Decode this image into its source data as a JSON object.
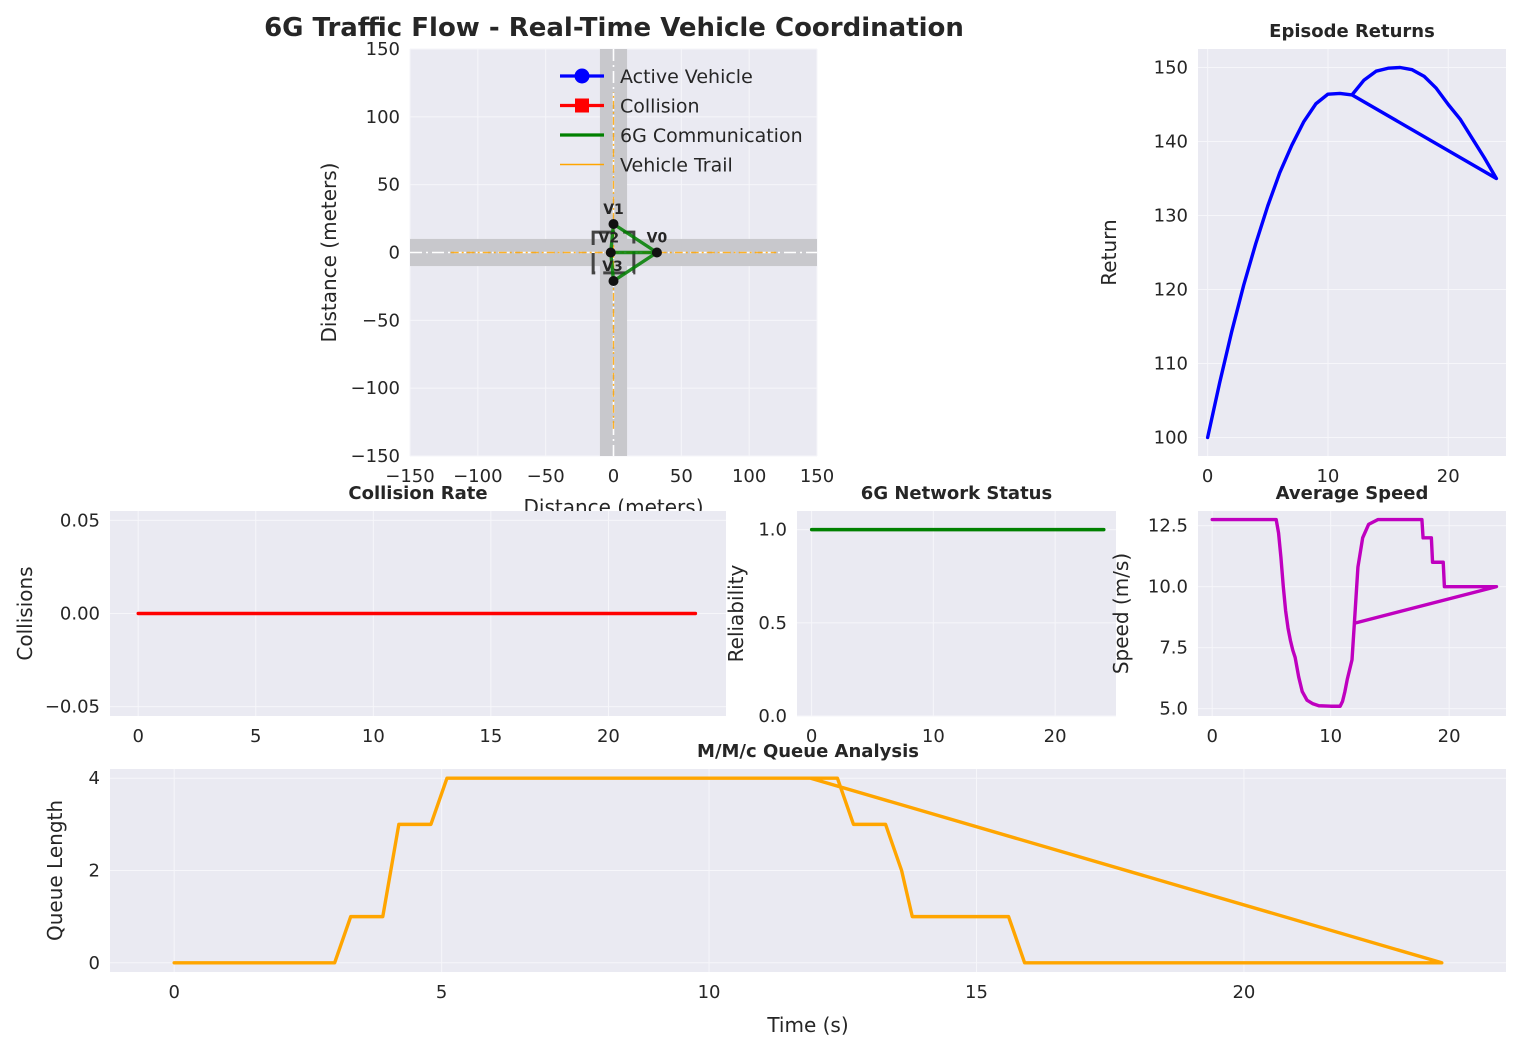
{
  "chart_data": [
    {
      "id": "traffic",
      "type": "scatter",
      "title": "6G Traffic Flow - Real-Time Vehicle Coordination",
      "xlabel": "Distance (meters)",
      "ylabel": "Distance (meters)",
      "xlim": [
        -150,
        150
      ],
      "ylim": [
        -150,
        150
      ],
      "xticks": [
        -150,
        -100,
        -50,
        0,
        50,
        100,
        150
      ],
      "yticks": [
        -150,
        -100,
        -50,
        0,
        50,
        100,
        150
      ],
      "grid": true,
      "legend": {
        "position": "top-right",
        "entries": [
          {
            "label": "Active Vehicle",
            "color": "#0000ff",
            "marker": "circle"
          },
          {
            "label": "Collision",
            "color": "#ff0000",
            "marker": "square"
          },
          {
            "label": "6G Communication",
            "color": "#008000",
            "marker": "line"
          },
          {
            "label": "Vehicle Trail",
            "color": "#ffa500",
            "marker": "thin-line"
          }
        ]
      },
      "vehicles": [
        {
          "label": "V0",
          "x": 32,
          "y": 0
        },
        {
          "label": "V1",
          "x": 0,
          "y": 21
        },
        {
          "label": "V2",
          "x": -2,
          "y": 0
        },
        {
          "label": "V3",
          "x": 0,
          "y": -21
        }
      ],
      "communication_links": [
        [
          0,
          1
        ],
        [
          1,
          2
        ],
        [
          2,
          3
        ],
        [
          3,
          0
        ],
        [
          0,
          2
        ]
      ],
      "trails": [
        {
          "x": [
            -120,
            120
          ],
          "y": [
            0,
            0
          ]
        },
        {
          "x": [
            0,
            0
          ],
          "y": [
            -130,
            118
          ]
        }
      ],
      "intersection_box": {
        "x": [
          -15,
          15
        ],
        "y": [
          -15,
          15
        ]
      },
      "roads": {
        "horizontal_halfwidth": 10,
        "vertical_halfwidth": 10
      }
    },
    {
      "id": "returns",
      "type": "line",
      "title": "Episode Returns",
      "ylabel": "Return",
      "xlim": [
        -0.8,
        24.8
      ],
      "ylim": [
        97.5,
        152.5
      ],
      "xticks": [
        0,
        10,
        20
      ],
      "yticks": [
        100,
        110,
        120,
        130,
        140,
        150
      ],
      "color": "#0000ff",
      "x": [
        0,
        1,
        2,
        3,
        4,
        5,
        6,
        7,
        8,
        9,
        10,
        11,
        12,
        13,
        14,
        15,
        16,
        17,
        18,
        19,
        20,
        21,
        22,
        23,
        24,
        12
      ],
      "y": [
        100,
        107.4,
        114.3,
        120.6,
        126.2,
        131.3,
        135.8,
        139.5,
        142.7,
        145.1,
        146.4,
        146.5,
        146.3,
        148.3,
        149.5,
        149.9,
        150,
        149.7,
        148.8,
        147.2,
        145,
        143,
        140.4,
        137.8,
        135,
        146.3
      ]
    },
    {
      "id": "collision",
      "type": "line",
      "title": "Collision Rate",
      "ylabel": "Collisions",
      "xlim": [
        -1.2,
        25
      ],
      "ylim": [
        -0.055,
        0.055
      ],
      "xticks": [
        0,
        5,
        10,
        15,
        20
      ],
      "yticks": [
        -0.05,
        0.0,
        0.05
      ],
      "ytick_labels": [
        "−0.05",
        "0.00",
        "0.05"
      ],
      "color": "#ff0000",
      "x": [
        0,
        23.7
      ],
      "y": [
        0,
        0
      ]
    },
    {
      "id": "network",
      "type": "line",
      "title": "6G Network Status",
      "ylabel": "Reliability",
      "xlim": [
        -1.2,
        25
      ],
      "ylim": [
        0,
        1.1
      ],
      "xticks": [
        0,
        10,
        20
      ],
      "yticks": [
        0.0,
        0.5,
        1.0
      ],
      "ytick_labels": [
        "0.0",
        "0.5",
        "1.0"
      ],
      "color": "#008000",
      "x": [
        0,
        24
      ],
      "y": [
        1,
        1
      ]
    },
    {
      "id": "speed",
      "type": "line",
      "title": "Average Speed",
      "ylabel": "Speed (m/s)",
      "xlim": [
        -1.2,
        24.8
      ],
      "ylim": [
        4.7,
        13.1
      ],
      "xticks": [
        0,
        10,
        20
      ],
      "yticks": [
        5.0,
        7.5,
        10.0,
        12.5
      ],
      "ytick_labels": [
        "5.0",
        "7.5",
        "10.0",
        "12.5"
      ],
      "color": "#bf00bf",
      "x": [
        0,
        5.4,
        5.6,
        5.8,
        6.0,
        6.2,
        6.4,
        6.6,
        6.8,
        7.0,
        7.3,
        7.6,
        8.0,
        8.5,
        9.0,
        10.0,
        10.8,
        11.0,
        11.2,
        11.4,
        11.6,
        11.8,
        12.0,
        12.3,
        12.7,
        13.2,
        14.0,
        15.0,
        17.7,
        17.8,
        18.5,
        18.6,
        19.5,
        19.6,
        20.2,
        20.3,
        24,
        12
      ],
      "y": [
        12.75,
        12.75,
        12.2,
        11.2,
        10.0,
        9.0,
        8.3,
        7.8,
        7.4,
        7.1,
        6.3,
        5.7,
        5.35,
        5.2,
        5.12,
        5.1,
        5.1,
        5.3,
        5.7,
        6.2,
        6.6,
        7.0,
        8.5,
        10.8,
        12.0,
        12.55,
        12.75,
        12.75,
        12.75,
        12.0,
        12.0,
        11.0,
        11.0,
        10.0,
        10.0,
        10.0,
        10.0,
        8.5
      ]
    },
    {
      "id": "queue",
      "type": "line",
      "title": "M/M/c Queue Analysis",
      "xlabel": "Time (s)",
      "ylabel": "Queue Length",
      "xlim": [
        -1.2,
        24.9
      ],
      "ylim": [
        -0.2,
        4.2
      ],
      "xticks": [
        0,
        5,
        10,
        15,
        20
      ],
      "yticks": [
        0,
        2,
        4
      ],
      "color": "#ffa500",
      "x": [
        0,
        3.0,
        3.3,
        3.9,
        4.2,
        4.8,
        5.1,
        6.0,
        7.0,
        8.0,
        9.0,
        10.0,
        11.0,
        12.2,
        12.4,
        12.7,
        13.3,
        13.6,
        13.8,
        15.6,
        15.9,
        23.7,
        11.9
      ],
      "y": [
        0,
        0,
        1,
        1,
        3,
        3,
        4,
        4,
        4,
        4,
        4,
        4,
        4,
        4,
        4,
        3,
        3,
        2,
        1,
        1,
        0,
        0,
        4
      ]
    }
  ]
}
